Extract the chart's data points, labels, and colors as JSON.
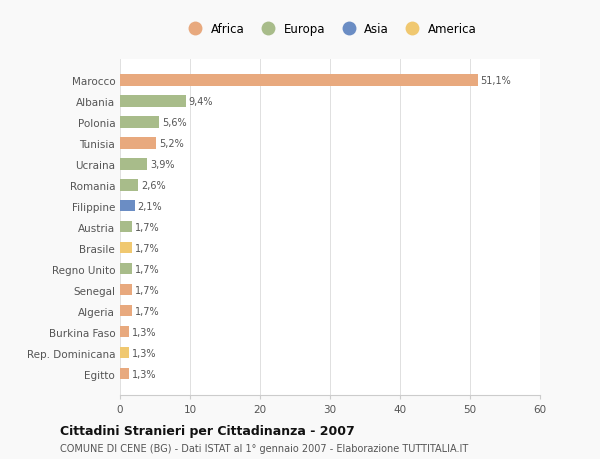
{
  "categories": [
    "Marocco",
    "Albania",
    "Polonia",
    "Tunisia",
    "Ucraina",
    "Romania",
    "Filippine",
    "Austria",
    "Brasile",
    "Regno Unito",
    "Senegal",
    "Algeria",
    "Burkina Faso",
    "Rep. Dominicana",
    "Egitto"
  ],
  "values": [
    51.1,
    9.4,
    5.6,
    5.2,
    3.9,
    2.6,
    2.1,
    1.7,
    1.7,
    1.7,
    1.7,
    1.7,
    1.3,
    1.3,
    1.3
  ],
  "labels": [
    "51,1%",
    "9,4%",
    "5,6%",
    "5,2%",
    "3,9%",
    "2,6%",
    "2,1%",
    "1,7%",
    "1,7%",
    "1,7%",
    "1,7%",
    "1,7%",
    "1,3%",
    "1,3%",
    "1,3%"
  ],
  "colors": [
    "#E8A97E",
    "#A8BC8A",
    "#A8BC8A",
    "#E8A97E",
    "#A8BC8A",
    "#A8BC8A",
    "#6B8DC4",
    "#A8BC8A",
    "#F0C870",
    "#A8BC8A",
    "#E8A97E",
    "#E8A97E",
    "#E8A97E",
    "#F0C870",
    "#E8A97E"
  ],
  "legend_labels": [
    "Africa",
    "Europa",
    "Asia",
    "America"
  ],
  "legend_colors": [
    "#E8A97E",
    "#A8BC8A",
    "#6B8DC4",
    "#F0C870"
  ],
  "xlim": [
    0,
    60
  ],
  "xticks": [
    0,
    10,
    20,
    30,
    40,
    50,
    60
  ],
  "title": "Cittadini Stranieri per Cittadinanza - 2007",
  "subtitle": "COMUNE DI CENE (BG) - Dati ISTAT al 1° gennaio 2007 - Elaborazione TUTTITALIA.IT",
  "background_color": "#f9f9f9",
  "plot_bg_color": "#ffffff"
}
